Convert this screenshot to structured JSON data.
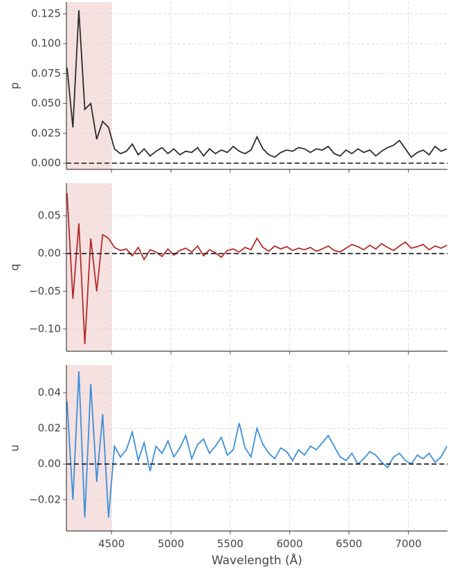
{
  "chart_data": [
    {
      "type": "line",
      "ylabel": "p",
      "highlight_range": [
        4120,
        4500
      ],
      "hline": 0,
      "grid": true,
      "show_xtick_labels": false,
      "xlim": [
        4120,
        7330
      ],
      "xticks": [
        4500,
        5000,
        5500,
        6000,
        6500,
        7000
      ],
      "ylim": [
        -0.0052,
        0.1348
      ],
      "yticks": [
        {
          "value": 0,
          "label": "0.000"
        },
        0.025,
        {
          "value": 0.05,
          "label": "0.050"
        },
        0.075,
        {
          "value": 0.1,
          "label": "0.100"
        },
        0.125
      ],
      "x": [
        4125,
        4175,
        4225,
        4275,
        4325,
        4375,
        4425,
        4475,
        4525,
        4575,
        4625,
        4675,
        4725,
        4775,
        4825,
        4875,
        4925,
        4975,
        5025,
        5075,
        5125,
        5175,
        5225,
        5275,
        5325,
        5375,
        5425,
        5475,
        5525,
        5575,
        5625,
        5675,
        5725,
        5775,
        5825,
        5875,
        5925,
        5975,
        6025,
        6075,
        6125,
        6175,
        6225,
        6275,
        6325,
        6375,
        6425,
        6475,
        6525,
        6575,
        6625,
        6675,
        6725,
        6775,
        6825,
        6875,
        6925,
        6975,
        7025,
        7075,
        7125,
        7175,
        7225,
        7275,
        7325
      ],
      "series": [
        {
          "name": "p",
          "color": "#2b2b2b",
          "values": [
            0.08,
            0.03,
            0.128,
            0.045,
            0.05,
            0.02,
            0.035,
            0.03,
            0.012,
            0.008,
            0.01,
            0.016,
            0.007,
            0.012,
            0.006,
            0.01,
            0.013,
            0.008,
            0.012,
            0.007,
            0.01,
            0.009,
            0.013,
            0.006,
            0.012,
            0.008,
            0.011,
            0.009,
            0.014,
            0.01,
            0.008,
            0.011,
            0.022,
            0.012,
            0.007,
            0.005,
            0.009,
            0.011,
            0.01,
            0.013,
            0.012,
            0.009,
            0.012,
            0.011,
            0.014,
            0.008,
            0.006,
            0.011,
            0.008,
            0.012,
            0.009,
            0.011,
            0.006,
            0.01,
            0.013,
            0.015,
            0.019,
            0.012,
            0.005,
            0.009,
            0.011,
            0.007,
            0.014,
            0.01,
            0.012
          ]
        }
      ]
    },
    {
      "type": "line",
      "ylabel": "q",
      "highlight_range": [
        4120,
        4500
      ],
      "hline": 0,
      "grid": true,
      "show_xtick_labels": false,
      "xlim": [
        4120,
        7330
      ],
      "xticks": [
        4500,
        5000,
        5500,
        6000,
        6500,
        7000
      ],
      "ylim": [
        -0.1294,
        0.0931
      ],
      "yticks": [
        {
          "value": -0.1,
          "label": "−0.10"
        },
        {
          "value": -0.05,
          "label": "−0.05"
        },
        {
          "value": 0,
          "label": "0.00"
        },
        {
          "value": 0.05,
          "label": "0.05"
        }
      ],
      "x": [
        4125,
        4175,
        4225,
        4275,
        4325,
        4375,
        4425,
        4475,
        4525,
        4575,
        4625,
        4675,
        4725,
        4775,
        4825,
        4875,
        4925,
        4975,
        5025,
        5075,
        5125,
        5175,
        5225,
        5275,
        5325,
        5375,
        5425,
        5475,
        5525,
        5575,
        5625,
        5675,
        5725,
        5775,
        5825,
        5875,
        5925,
        5975,
        6025,
        6075,
        6125,
        6175,
        6225,
        6275,
        6325,
        6375,
        6425,
        6475,
        6525,
        6575,
        6625,
        6675,
        6725,
        6775,
        6825,
        6875,
        6925,
        6975,
        7025,
        7075,
        7125,
        7175,
        7225,
        7275,
        7325
      ],
      "series": [
        {
          "name": "q",
          "color": "#b52a2a",
          "values": [
            0.08,
            -0.06,
            0.04,
            -0.12,
            0.02,
            -0.05,
            0.025,
            0.02,
            0.008,
            0.004,
            0.006,
            -0.003,
            0.008,
            -0.008,
            0.005,
            0.002,
            -0.004,
            0.006,
            -0.002,
            0.004,
            0.007,
            0.002,
            0.01,
            -0.003,
            0.005,
            0.001,
            -0.005,
            0.004,
            0.006,
            0.002,
            0.008,
            0.005,
            0.02,
            0.008,
            0.003,
            0.01,
            0.006,
            0.009,
            0.004,
            0.007,
            0.005,
            0.008,
            0.003,
            0.006,
            0.01,
            0.004,
            0.002,
            0.007,
            0.012,
            0.009,
            0.005,
            0.011,
            0.006,
            0.013,
            0.008,
            0.004,
            0.01,
            0.015,
            0.007,
            0.009,
            0.012,
            0.005,
            0.01,
            0.007,
            0.011
          ]
        }
      ]
    },
    {
      "type": "line",
      "ylabel": "u",
      "xlabel": "Wavelength (Å)",
      "highlight_range": [
        4120,
        4500
      ],
      "hline": 0,
      "grid": true,
      "show_xtick_labels": true,
      "xlim": [
        4120,
        7330
      ],
      "xticks": [
        4500,
        5000,
        5500,
        6000,
        6500,
        7000
      ],
      "ylim": [
        -0.0375,
        0.0555
      ],
      "yticks": [
        {
          "value": -0.02,
          "label": "−0.02"
        },
        {
          "value": 0,
          "label": "0.00"
        },
        {
          "value": 0.02,
          "label": "0.02"
        },
        {
          "value": 0.04,
          "label": "0.04"
        }
      ],
      "x": [
        4125,
        4175,
        4225,
        4275,
        4325,
        4375,
        4425,
        4475,
        4525,
        4575,
        4625,
        4675,
        4725,
        4775,
        4825,
        4875,
        4925,
        4975,
        5025,
        5075,
        5125,
        5175,
        5225,
        5275,
        5325,
        5375,
        5425,
        5475,
        5525,
        5575,
        5625,
        5675,
        5725,
        5775,
        5825,
        5875,
        5925,
        5975,
        6025,
        6075,
        6125,
        6175,
        6225,
        6275,
        6325,
        6375,
        6425,
        6475,
        6525,
        6575,
        6625,
        6675,
        6725,
        6775,
        6825,
        6875,
        6925,
        6975,
        7025,
        7075,
        7125,
        7175,
        7225,
        7275,
        7325
      ],
      "series": [
        {
          "name": "u",
          "color": "#3a8fd9",
          "values": [
            0.035,
            -0.02,
            0.052,
            -0.03,
            0.045,
            -0.01,
            0.028,
            -0.03,
            0.01,
            0.004,
            0.008,
            0.018,
            0.002,
            0.012,
            -0.004,
            0.01,
            0.006,
            0.013,
            0.004,
            0.009,
            0.016,
            0.003,
            0.011,
            0.014,
            0.006,
            0.01,
            0.015,
            0.005,
            0.008,
            0.023,
            0.009,
            0.004,
            0.02,
            0.011,
            0.006,
            0.003,
            0.009,
            0.007,
            0.002,
            0.008,
            0.005,
            0.01,
            0.008,
            0.012,
            0.016,
            0.01,
            0.004,
            0.002,
            0.006,
            0.0,
            0.003,
            0.007,
            0.005,
            0.001,
            -0.002,
            0.004,
            0.006,
            0.002,
            0.0,
            0.005,
            0.003,
            0.006,
            0.001,
            0.004,
            0.01
          ]
        }
      ]
    }
  ]
}
